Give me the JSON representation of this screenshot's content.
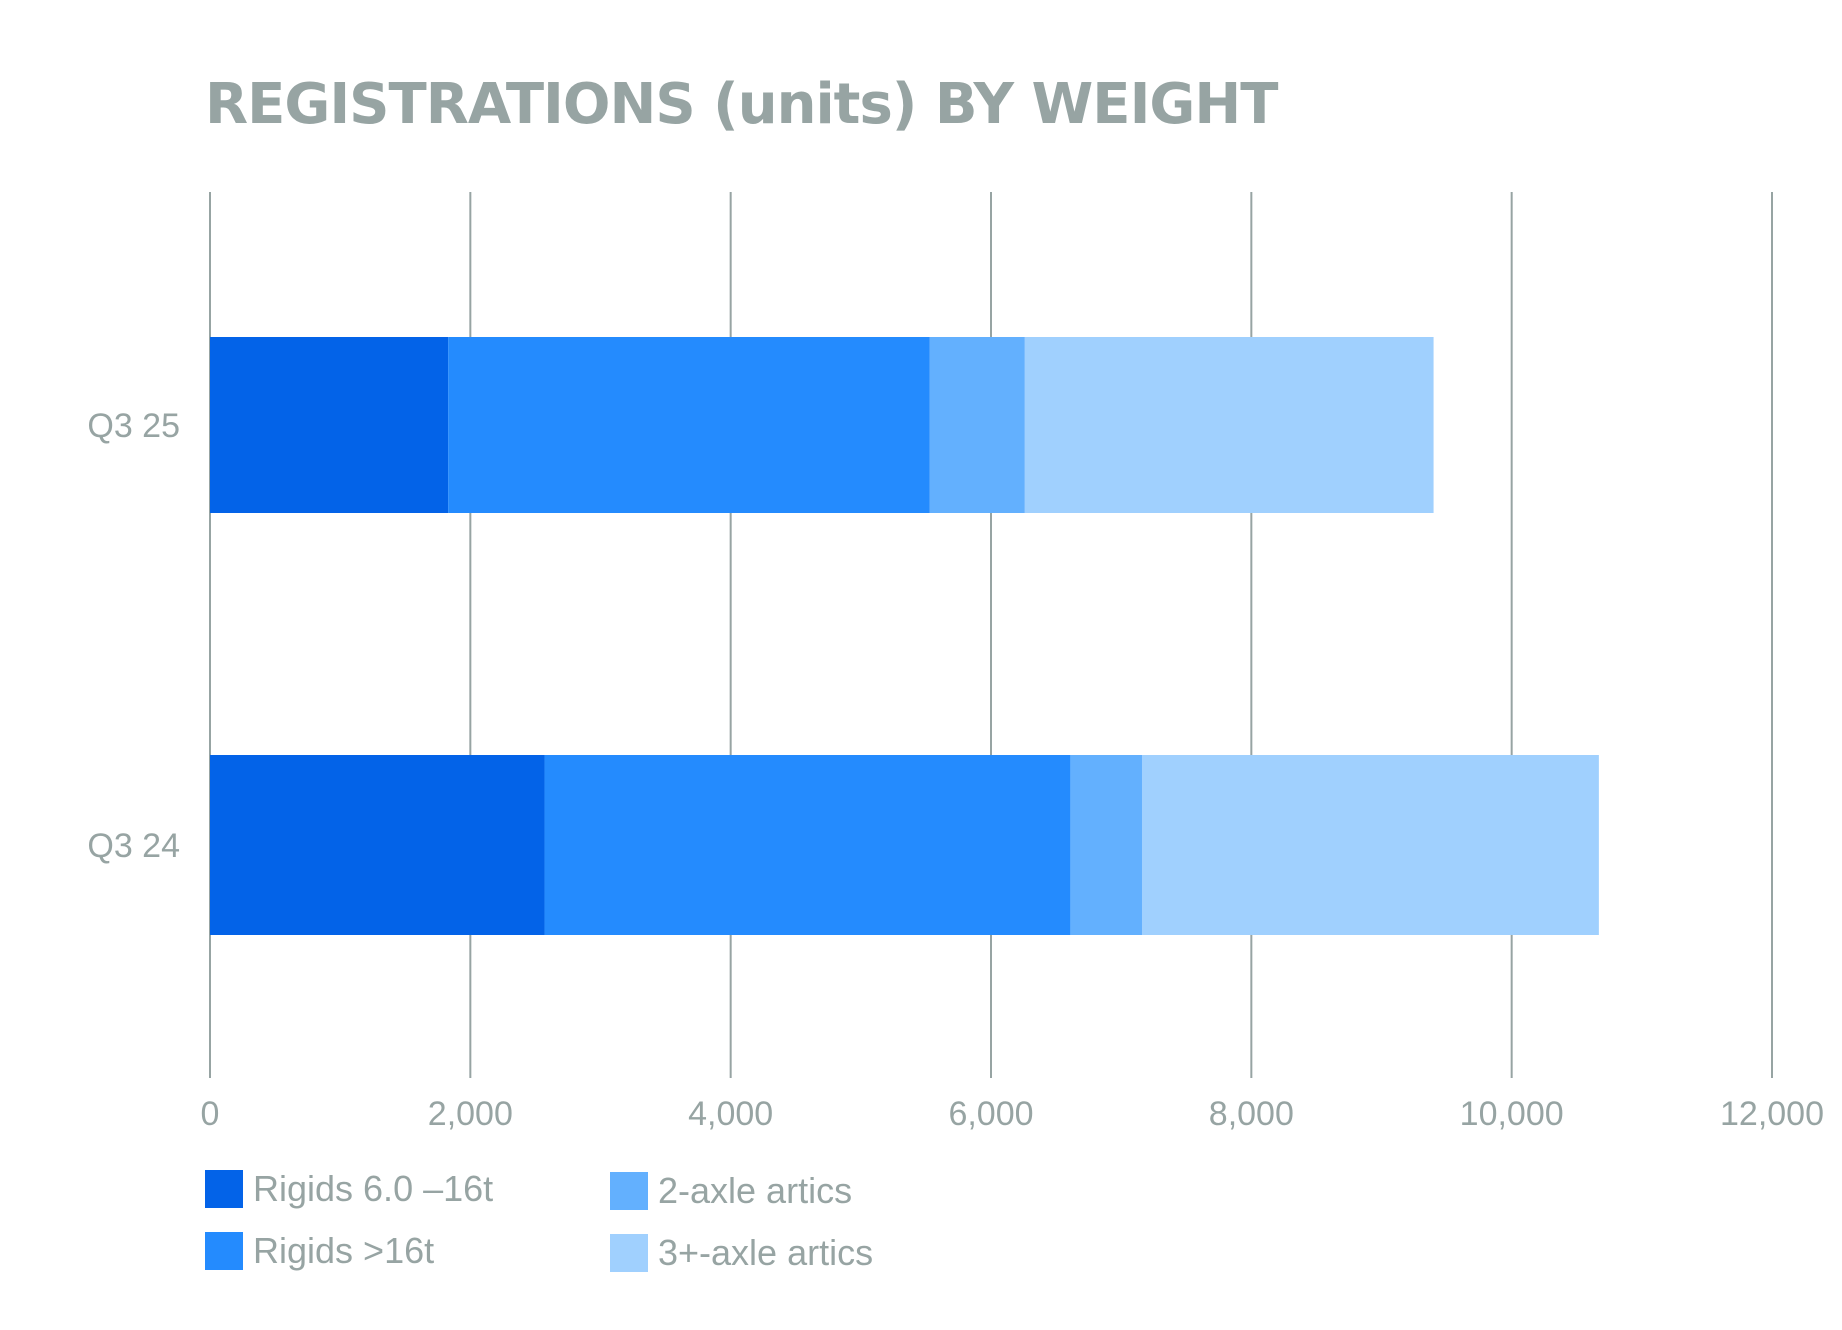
{
  "chart_data": {
    "type": "bar",
    "orientation": "horizontal",
    "stacked": true,
    "title": "REGISTRATIONS (units) BY WEIGHT",
    "categories": [
      "Q3 25",
      "Q3 24"
    ],
    "series": [
      {
        "name": "Rigids 6.0 –16t",
        "values": [
          1830,
          2570
        ],
        "color": "#0363e8"
      },
      {
        "name": "Rigids >16t",
        "values": [
          3700,
          4040
        ],
        "color": "#248bfe"
      },
      {
        "name": "2-axle artics",
        "values": [
          730,
          550
        ],
        "color": "#63b0fe"
      },
      {
        "name": "3+-axle artics",
        "values": [
          3140,
          3510
        ],
        "color": "#a0d0fe"
      }
    ],
    "x_ticks": [
      "0",
      "2,000",
      "4,000",
      "6,000",
      "8,000",
      "10,000",
      "12,000"
    ],
    "xlim": [
      0,
      12000
    ],
    "grid": "vertical",
    "legend_position": "bottom",
    "text_color": "#97a4a3"
  }
}
